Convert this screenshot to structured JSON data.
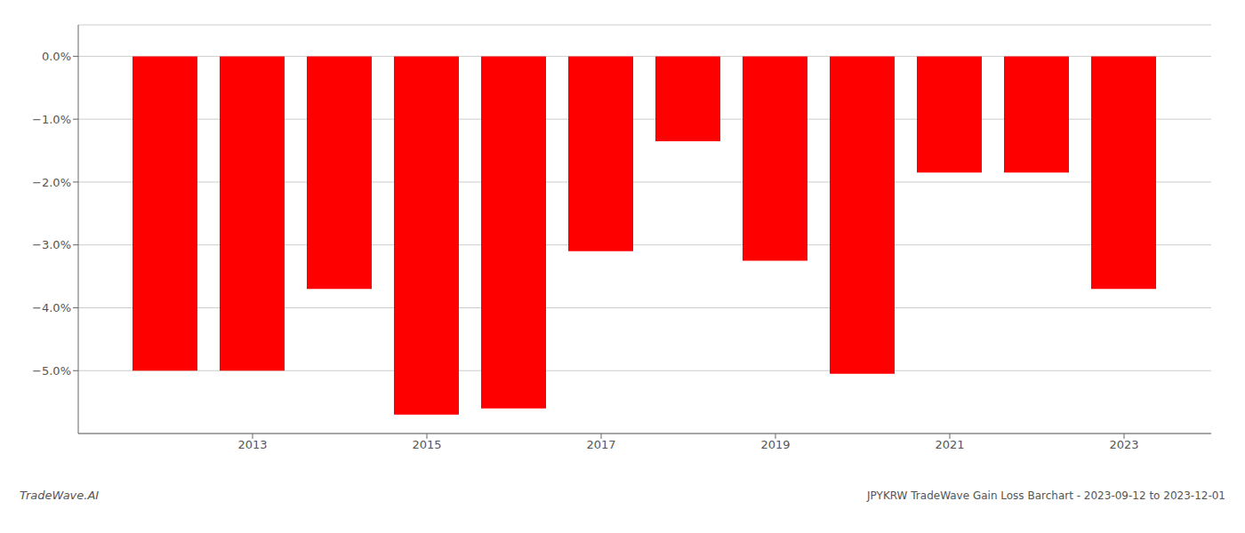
{
  "chart_data": {
    "type": "bar",
    "title": "JPYKRW TradeWave Gain Loss Barchart - 2023-09-12 to 2023-12-01",
    "annotations": [
      "TradeWave.AI"
    ],
    "x": [
      2012,
      2013,
      2014,
      2015,
      2016,
      2017,
      2018,
      2019,
      2020,
      2021,
      2022,
      2023
    ],
    "values": [
      -5.0,
      -5.0,
      -3.7,
      -5.7,
      -5.6,
      -3.1,
      -1.35,
      -3.25,
      -5.05,
      -1.85,
      -1.85,
      -3.7
    ],
    "color": "#ff0000",
    "xlim": [
      2011,
      2024
    ],
    "xticks": [
      2013,
      2015,
      2017,
      2019,
      2021,
      2023
    ],
    "ylim": [
      -6.0,
      0.5
    ],
    "yticks": [
      {
        "value": 0.0,
        "label": "0.0%"
      },
      {
        "value": -1.0,
        "label": "−1.0%"
      },
      {
        "value": -2.0,
        "label": "−2.0%"
      },
      {
        "value": -3.0,
        "label": "−3.0%"
      },
      {
        "value": -4.0,
        "label": "−4.0%"
      },
      {
        "value": -5.0,
        "label": "−5.0%"
      }
    ],
    "grid": true
  }
}
